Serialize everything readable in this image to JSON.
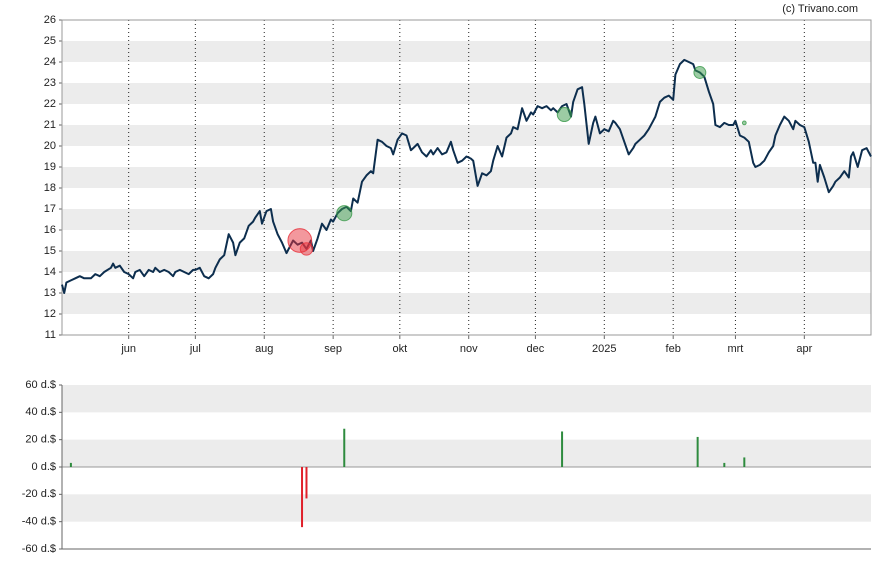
{
  "chart_data": [
    {
      "type": "line",
      "source": "(c) Trivano.com",
      "xlim": [
        0,
        364
      ],
      "xticks": [
        {
          "value": 30,
          "label": "jun"
        },
        {
          "value": 60,
          "label": "jul"
        },
        {
          "value": 91,
          "label": "aug"
        },
        {
          "value": 122,
          "label": "sep"
        },
        {
          "value": 152,
          "label": "okt"
        },
        {
          "value": 183,
          "label": "nov"
        },
        {
          "value": 213,
          "label": "dec"
        },
        {
          "value": 244,
          "label": "2025"
        },
        {
          "value": 275,
          "label": "feb"
        },
        {
          "value": 303,
          "label": "mrt"
        },
        {
          "value": 334,
          "label": "apr"
        }
      ],
      "ylim": [
        11,
        26
      ],
      "yticks": [
        11,
        12,
        13,
        14,
        15,
        16,
        17,
        18,
        19,
        20,
        21,
        22,
        23,
        24,
        25,
        26
      ],
      "grid": true,
      "xgrid": true,
      "series": [
        {
          "type": "line",
          "color": "#0d2e4e",
          "x": [
            0,
            1,
            2,
            4,
            6,
            8,
            10,
            13,
            15,
            17,
            19,
            22,
            23,
            24,
            26,
            28,
            30,
            32,
            33,
            35,
            37,
            39,
            41,
            42,
            44,
            46,
            48,
            50,
            51,
            53,
            55,
            57,
            59,
            60,
            62,
            64,
            66,
            68,
            69,
            71,
            73,
            75,
            77,
            78,
            80,
            82,
            84,
            86,
            87,
            89,
            90,
            92,
            94,
            95,
            97,
            99,
            101,
            103,
            104,
            106,
            108,
            110,
            112,
            113,
            115,
            117,
            119,
            121,
            122,
            124,
            126,
            128,
            130,
            131,
            133,
            135,
            137,
            139,
            140,
            142,
            144,
            146,
            148,
            149,
            151,
            153,
            155,
            157,
            158,
            160,
            162,
            164,
            166,
            167,
            169,
            171,
            173,
            175,
            176,
            178,
            180,
            182,
            184,
            185,
            187,
            189,
            191,
            193,
            194,
            196,
            198,
            200,
            202,
            203,
            205,
            207,
            209,
            211,
            212,
            214,
            216,
            218,
            220,
            221,
            223,
            225,
            227,
            229,
            230,
            232,
            234,
            235,
            237,
            239,
            240,
            242,
            244,
            246,
            248,
            249,
            251,
            253,
            255,
            257,
            258,
            260,
            262,
            264,
            266,
            267,
            269,
            271,
            273,
            275,
            276,
            278,
            280,
            282,
            284,
            285,
            287,
            289,
            291,
            293,
            294,
            296,
            298,
            300,
            302,
            303,
            305,
            307,
            309,
            311,
            312,
            314,
            316,
            318,
            320,
            321,
            323,
            325,
            327,
            329,
            330,
            332,
            334,
            336,
            338,
            339,
            340,
            341,
            343,
            345,
            347,
            348,
            350,
            352,
            354,
            355,
            356,
            358,
            360,
            362,
            364
          ],
          "values": [
            13.4,
            13.0,
            13.5,
            13.6,
            13.7,
            13.8,
            13.7,
            13.7,
            13.9,
            13.8,
            14.0,
            14.2,
            14.4,
            14.2,
            14.3,
            14.0,
            13.9,
            13.7,
            14.0,
            14.1,
            13.8,
            14.1,
            14.0,
            14.2,
            14.0,
            14.1,
            14.0,
            13.8,
            14.0,
            14.1,
            14.0,
            13.9,
            14.1,
            14.1,
            14.2,
            13.8,
            13.7,
            13.9,
            14.2,
            14.6,
            14.8,
            15.8,
            15.4,
            14.8,
            15.4,
            15.6,
            16.2,
            16.4,
            16.6,
            16.9,
            16.3,
            16.9,
            17.0,
            16.4,
            15.8,
            15.4,
            14.9,
            15.3,
            15.5,
            15.3,
            15.4,
            15.1,
            15.5,
            15.0,
            15.6,
            16.3,
            16.0,
            16.5,
            16.4,
            16.8,
            17.0,
            17.1,
            16.9,
            17.5,
            17.3,
            18.3,
            18.6,
            18.8,
            18.7,
            20.3,
            20.2,
            20.0,
            19.9,
            19.6,
            20.3,
            20.6,
            20.5,
            19.8,
            19.9,
            20.1,
            19.7,
            19.5,
            19.8,
            19.6,
            19.9,
            19.6,
            19.7,
            20.2,
            19.8,
            19.2,
            19.3,
            19.5,
            19.4,
            19.3,
            18.1,
            18.7,
            18.6,
            18.8,
            19.3,
            20.0,
            19.5,
            20.4,
            20.6,
            20.9,
            20.8,
            21.8,
            21.2,
            21.6,
            21.5,
            21.9,
            21.8,
            21.9,
            21.7,
            21.8,
            21.6,
            21.9,
            22.0,
            21.4,
            22.1,
            22.7,
            22.8,
            22.0,
            20.1,
            21.1,
            21.4,
            20.6,
            20.8,
            20.7,
            21.2,
            21.1,
            20.8,
            20.2,
            19.6,
            19.9,
            20.1,
            20.3,
            20.5,
            20.8,
            21.2,
            21.4,
            22.1,
            22.3,
            22.4,
            22.2,
            23.4,
            23.9,
            24.1,
            24.0,
            23.9,
            23.6,
            23.5,
            23.3,
            22.6,
            22.0,
            21.0,
            20.9,
            21.1,
            21.0,
            21.0,
            21.2,
            20.5,
            20.4,
            20.2,
            19.2,
            19.0,
            19.1,
            19.3,
            19.7,
            20.0,
            20.5,
            21.0,
            21.4,
            21.2,
            20.8,
            21.2,
            21.0,
            20.9,
            20.2,
            19.2,
            19.2,
            18.3,
            19.1,
            18.5,
            17.8,
            18.1,
            18.3,
            18.5,
            18.8,
            18.5,
            19.5,
            19.7,
            19.0,
            19.8,
            19.9,
            19.5
          ]
        },
        {
          "type": "scatter",
          "x": [
            107,
            110,
            127,
            226,
            287,
            307
          ],
          "values": [
            15.5,
            15.1,
            16.8,
            21.5,
            23.5,
            21.1
          ],
          "sizes": [
            44,
            23,
            28,
            26,
            22,
            7
          ],
          "colors": [
            "#e8323c",
            "#e8323c",
            "#3a9a4a",
            "#3a9a4a",
            "#3a9a4a",
            "#3a9a4a"
          ]
        }
      ]
    },
    {
      "type": "bar",
      "xlim": [
        0,
        364
      ],
      "ylim": [
        -60,
        60
      ],
      "yticks": [
        {
          "value": -60,
          "label": "-60 d.$"
        },
        {
          "value": -40,
          "label": "-40 d.$"
        },
        {
          "value": -20,
          "label": "-20 d.$"
        },
        {
          "value": 0,
          "label": "0 d.$"
        },
        {
          "value": 20,
          "label": "20 d.$"
        },
        {
          "value": 40,
          "label": "40 d.$"
        },
        {
          "value": 60,
          "label": "60 d.$"
        }
      ],
      "grid": true,
      "x": [
        4,
        108,
        110,
        127,
        225,
        286,
        298,
        307
      ],
      "values": [
        3,
        -44,
        -23,
        28,
        26,
        22,
        3,
        7
      ],
      "color_positive": "#2e8b3e",
      "color_negative": "#e0202a"
    }
  ]
}
